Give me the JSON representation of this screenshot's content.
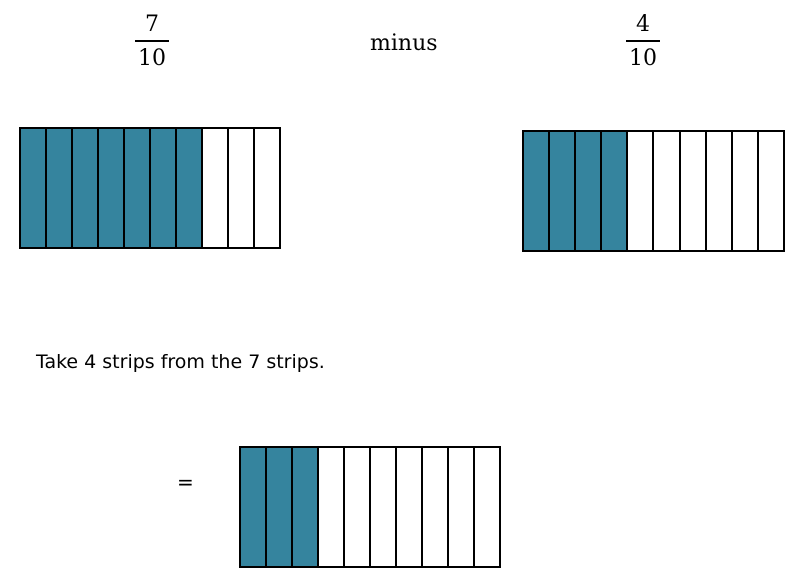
{
  "colors": {
    "shaded": "#35849e",
    "unshaded": "#ffffff",
    "outline": "#000000"
  },
  "fraction_left": {
    "numerator": "7",
    "denominator": "10"
  },
  "operator": "minus",
  "fraction_right": {
    "numerator": "4",
    "denominator": "10"
  },
  "strip_models": {
    "left": {
      "total": 10,
      "shaded": 7
    },
    "right": {
      "total": 10,
      "shaded": 4
    },
    "result": {
      "total": 10,
      "shaded": 3
    }
  },
  "instruction": "Take 4 strips from the 7 strips.",
  "equals_sign": "="
}
